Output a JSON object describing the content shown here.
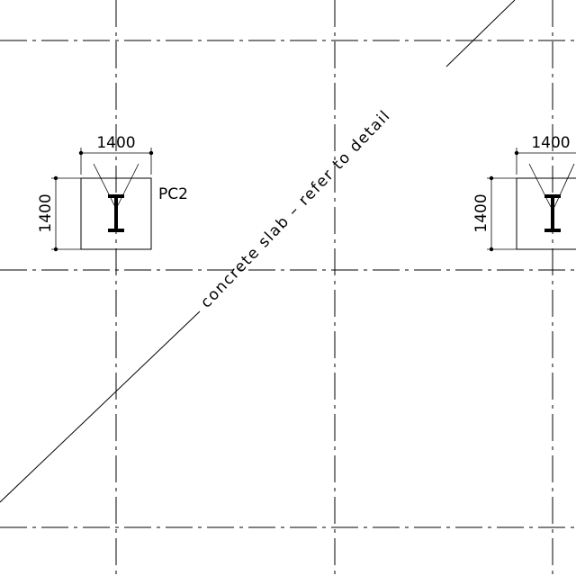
{
  "note": {
    "text": "concrete slab – refer to detail"
  },
  "pad_left": {
    "mark": "PC2",
    "width_dim": "1400",
    "height_dim": "1400"
  },
  "pad_right": {
    "width_dim": "1400",
    "height_dim": "1400"
  }
}
